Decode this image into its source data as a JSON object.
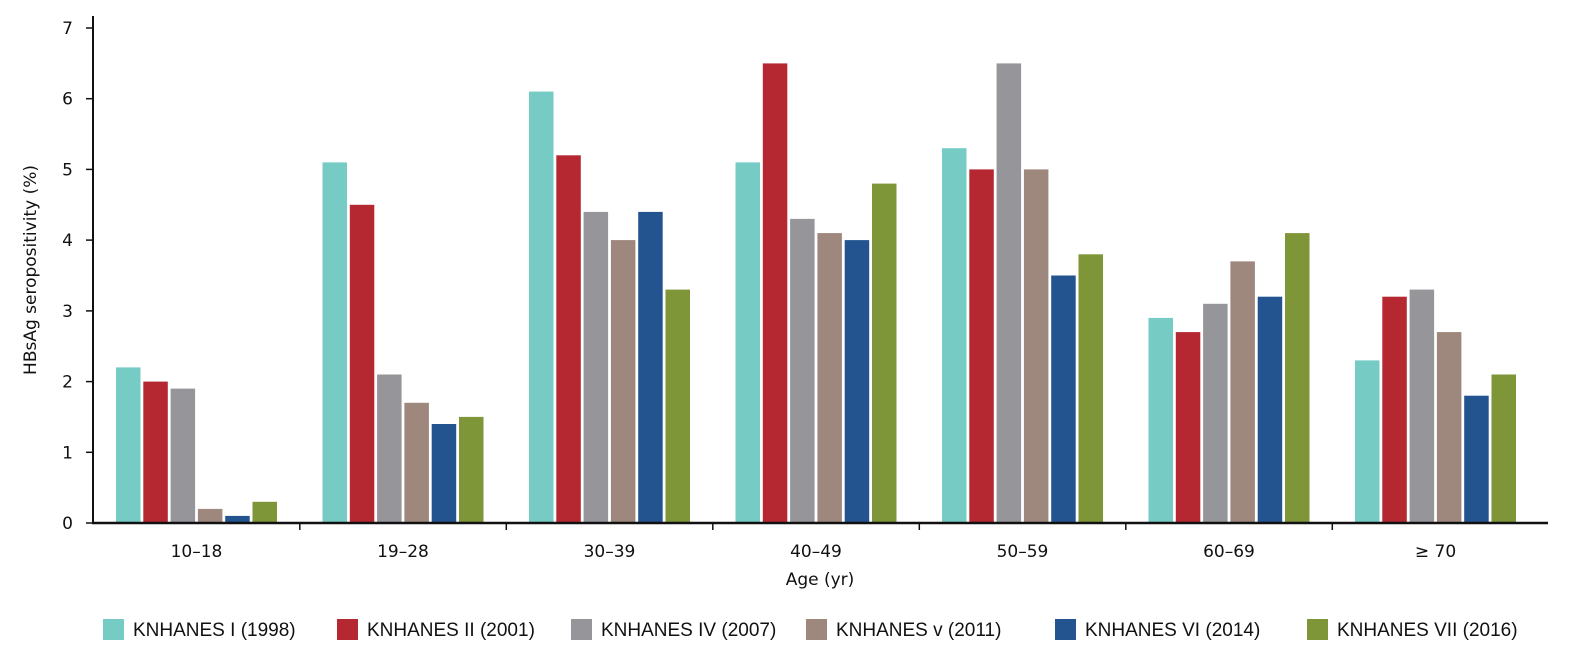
{
  "chart_data": {
    "type": "bar",
    "title": "",
    "xlabel": "Age (yr)",
    "ylabel": "HBsAg seropositivity (%)",
    "ylim": [
      0,
      7
    ],
    "yticks": [
      "0",
      "1",
      "2",
      "3",
      "4",
      "5",
      "6",
      "7"
    ],
    "categories": [
      "10–18",
      "19–28",
      "30–39",
      "40–49",
      "50–59",
      "60–69",
      "≥ 70"
    ],
    "grid": false,
    "legend_position": "bottom",
    "series": [
      {
        "name": "KNHANES I (1998)",
        "color": "#76cbc4",
        "values": [
          2.2,
          5.1,
          6.1,
          5.1,
          5.3,
          2.9,
          2.3
        ]
      },
      {
        "name": "KNHANES II (2001)",
        "color": "#b52832",
        "values": [
          2.0,
          4.5,
          5.2,
          6.5,
          5.0,
          2.7,
          3.2
        ]
      },
      {
        "name": "KNHANES IV (2007)",
        "color": "#96969a",
        "values": [
          1.9,
          2.1,
          4.4,
          4.3,
          6.5,
          3.1,
          3.3
        ]
      },
      {
        "name": "KNHANES v (2011)",
        "color": "#9e877c",
        "values": [
          0.2,
          1.7,
          4.0,
          4.1,
          5.0,
          3.7,
          2.7
        ]
      },
      {
        "name": "KNHANES VI (2014)",
        "color": "#235490",
        "values": [
          0.1,
          1.4,
          4.4,
          4.0,
          3.5,
          3.2,
          1.8
        ]
      },
      {
        "name": "KNHANES VII (2016)",
        "color": "#7f9638",
        "values": [
          0.3,
          1.5,
          3.3,
          4.8,
          3.8,
          4.1,
          2.1
        ]
      }
    ]
  }
}
